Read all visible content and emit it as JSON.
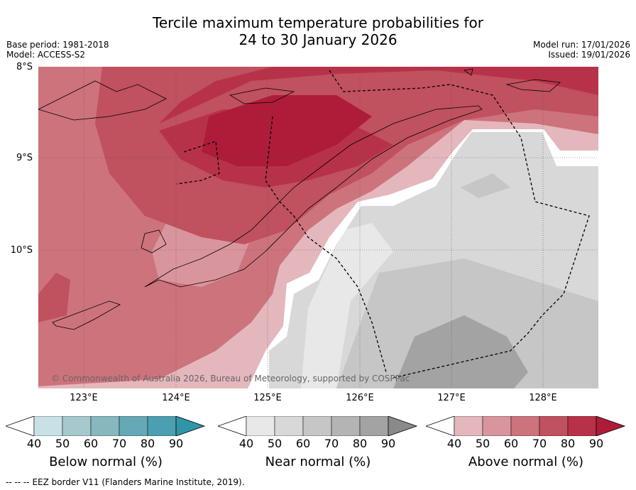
{
  "title": {
    "line1": "Tercile maximum temperature probabilities for",
    "line2": "24 to 30 January 2026"
  },
  "meta": {
    "base_period": "Base period: 1981-2018",
    "model": "Model: ACCESS-S2",
    "model_run": "Model run: 17/01/2026",
    "issued": "Issued: 19/01/2026"
  },
  "axes": {
    "lat_labels": [
      "8°S",
      "9°S",
      "10°S"
    ],
    "lon_labels": [
      "123°E",
      "124°E",
      "125°E",
      "126°E",
      "127°E",
      "128°E"
    ]
  },
  "copyright": "© Commonwealth of Australia 2026, Bureau of Meteorology, supported by COSPPac",
  "colorbars": [
    {
      "name": "below",
      "label": "Below normal (%)",
      "ticks": [
        "40",
        "50",
        "60",
        "70",
        "80",
        "90"
      ],
      "colors": [
        "#ffffff",
        "#c8e1e7",
        "#a7c9ce",
        "#88b7c0",
        "#66a9b6",
        "#4aa0b0",
        "#2f96a8"
      ]
    },
    {
      "name": "near",
      "label": "Near normal (%)",
      "ticks": [
        "40",
        "50",
        "60",
        "70",
        "80",
        "90"
      ],
      "colors": [
        "#ffffff",
        "#e8e8e8",
        "#d8d8d8",
        "#c6c6c6",
        "#b4b4b4",
        "#a3a3a3",
        "#8a8a8a"
      ]
    },
    {
      "name": "above",
      "label": "Above normal (%)",
      "ticks": [
        "40",
        "50",
        "60",
        "70",
        "80",
        "90"
      ],
      "colors": [
        "#ffffff",
        "#e4b7bc",
        "#d9959d",
        "#cd737c",
        "#c0515e",
        "#b73248",
        "#ae1c3a"
      ]
    }
  ],
  "legend": {
    "line_symbol": "--  --  --",
    "text": "EEZ border V11 (Flanders Marine Institute, 2019)."
  }
}
